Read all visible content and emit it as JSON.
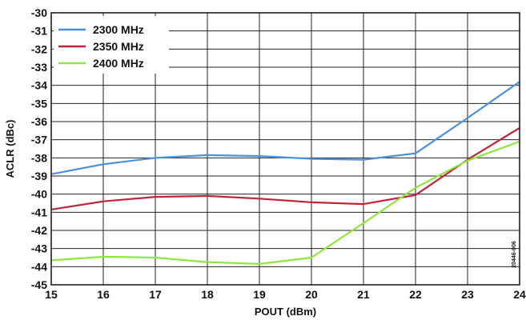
{
  "chart_data": {
    "type": "line",
    "title": "",
    "xlabel": "POUT (dBm)",
    "ylabel": "ACLR (dBc)",
    "xlim": [
      15,
      24
    ],
    "ylim": [
      -45,
      -30
    ],
    "x": [
      15,
      16,
      17,
      18,
      19,
      20,
      21,
      22,
      23,
      24
    ],
    "x_ticks": [
      "15",
      "16",
      "17",
      "18",
      "19",
      "20",
      "21",
      "22",
      "23",
      "24"
    ],
    "y_ticks": [
      "-30",
      "-31",
      "-32",
      "-33",
      "-34",
      "-35",
      "-36",
      "-37",
      "-38",
      "-39",
      "-40",
      "-41",
      "-42",
      "-43",
      "-44",
      "-45"
    ],
    "grid": true,
    "legend_position": "top-left",
    "series": [
      {
        "name": "2300 MHz",
        "color": "#4a8fe0",
        "values": [
          -38.9,
          -38.35,
          -38.0,
          -37.85,
          -37.9,
          -38.05,
          -38.1,
          -37.75,
          -35.8,
          -33.8
        ]
      },
      {
        "name": "2350 MHz",
        "color": "#c0243c",
        "values": [
          -40.85,
          -40.4,
          -40.15,
          -40.1,
          -40.25,
          -40.45,
          -40.55,
          -40.05,
          -38.1,
          -36.35
        ]
      },
      {
        "name": "2400 MHz",
        "color": "#8ee83c",
        "values": [
          -43.65,
          -43.45,
          -43.5,
          -43.75,
          -43.85,
          -43.5,
          -41.6,
          -39.65,
          -38.15,
          -37.1
        ]
      }
    ],
    "figure_id": "20446-006"
  }
}
